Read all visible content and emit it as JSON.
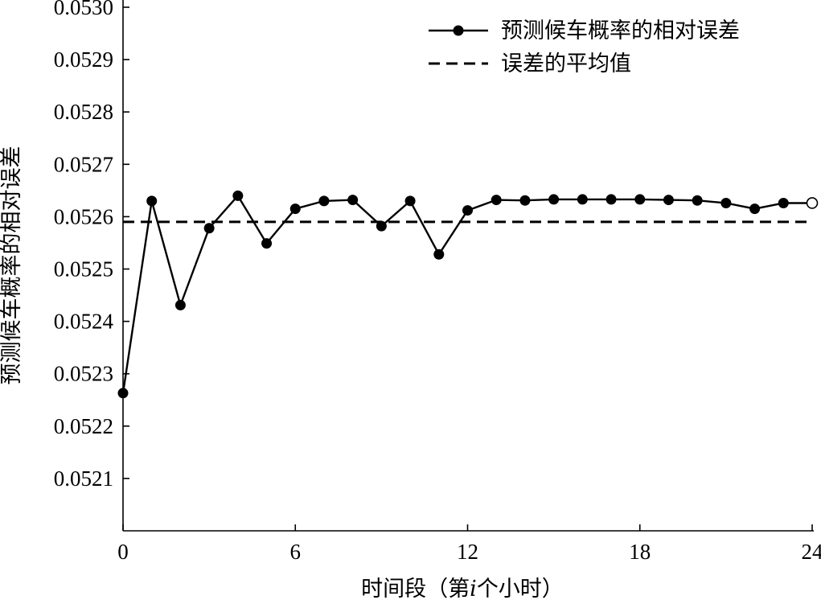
{
  "chart_data": {
    "type": "line",
    "xlabel": "时间段（第",
    "xlabel_italic": "i",
    "xlabel_tail": "个小时）",
    "ylabel": "预测候车概率的相对误差",
    "xlim": [
      0,
      24
    ],
    "ylim": [
      0.052,
      0.053
    ],
    "x_ticks": [
      0,
      6,
      12,
      18,
      24
    ],
    "x_tick_labels": [
      "0",
      "6",
      "12",
      "18",
      "24"
    ],
    "y_ticks": [
      0.0521,
      0.0522,
      0.0523,
      0.0524,
      0.0525,
      0.0526,
      0.0527,
      0.0528,
      0.0529,
      0.053
    ],
    "y_tick_labels": [
      "0.0521",
      "0.0522",
      "0.0523",
      "0.0524",
      "0.0525",
      "0.0526",
      "0.0527",
      "0.0528",
      "0.0529",
      "0.0530"
    ],
    "legend_position": "top-right",
    "series": [
      {
        "name": "预测候车概率的相对误差",
        "style": "solid-with-markers",
        "x": [
          0,
          1,
          2,
          3,
          4,
          5,
          6,
          7,
          8,
          9,
          10,
          11,
          12,
          13,
          14,
          15,
          16,
          17,
          18,
          19,
          20,
          21,
          22,
          23,
          24
        ],
        "y": [
          0.052263,
          0.05263,
          0.052431,
          0.052578,
          0.05264,
          0.052549,
          0.052615,
          0.05263,
          0.052632,
          0.052582,
          0.05263,
          0.052528,
          0.052612,
          0.052632,
          0.052631,
          0.052633,
          0.052633,
          0.052633,
          0.052633,
          0.052632,
          0.052631,
          0.052626,
          0.052615,
          0.052626,
          0.052626
        ],
        "open_marker_index": 24
      },
      {
        "name": "误差的平均值",
        "style": "dashed",
        "value": 0.05259
      }
    ]
  }
}
